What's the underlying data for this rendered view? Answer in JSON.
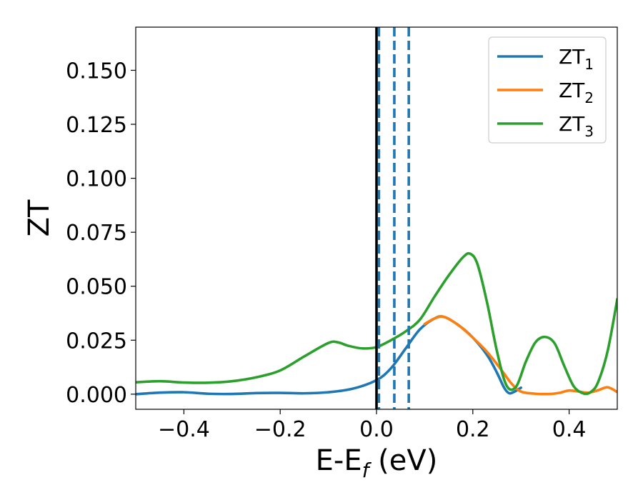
{
  "chart_data": {
    "type": "line",
    "xlabel": "E-E",
    "xlabel_sub": "f",
    "xlabel_unit": " (eV)",
    "ylabel": "ZT",
    "xlim": [
      -0.5,
      0.5
    ],
    "ylim": [
      -0.007,
      0.17
    ],
    "xticks": [
      -0.4,
      -0.2,
      0.0,
      0.2,
      0.4
    ],
    "xtick_labels": [
      "−0.4",
      "−0.2",
      "0.0",
      "0.2",
      "0.4"
    ],
    "yticks": [
      0.0,
      0.025,
      0.05,
      0.075,
      0.1,
      0.125,
      0.15
    ],
    "ytick_labels": [
      "0.000",
      "0.025",
      "0.050",
      "0.075",
      "0.100",
      "0.125",
      "0.150"
    ],
    "grid": false,
    "legend_position": "top-right",
    "vlines": [
      {
        "x": 0.0,
        "color": "#000000",
        "style": "solid"
      },
      {
        "x": 0.005,
        "color": "#1f77b4",
        "style": "dashed"
      },
      {
        "x": 0.037,
        "color": "#1f77b4",
        "style": "dashed"
      },
      {
        "x": 0.067,
        "color": "#1f77b4",
        "style": "dashed"
      }
    ],
    "series": [
      {
        "name": "ZT",
        "name_sub": "1",
        "color": "#1f77b4",
        "x": [
          -0.5,
          -0.45,
          -0.4,
          -0.35,
          -0.3,
          -0.25,
          -0.2,
          -0.15,
          -0.1,
          -0.05,
          0.0,
          0.03,
          0.06,
          0.09,
          0.12,
          0.14,
          0.17,
          0.2,
          0.23,
          0.25,
          0.265,
          0.275,
          0.285,
          0.3
        ],
        "y": [
          0.0,
          0.0007,
          0.0009,
          0.0002,
          0.0001,
          0.0005,
          0.0006,
          0.0004,
          0.0009,
          0.0025,
          0.0065,
          0.012,
          0.021,
          0.03,
          0.035,
          0.0358,
          0.032,
          0.0262,
          0.018,
          0.01,
          0.003,
          0.0005,
          0.001,
          0.003
        ]
      },
      {
        "name": "ZT",
        "name_sub": "2",
        "color": "#ff7f0e",
        "x": [
          0.1,
          0.12,
          0.14,
          0.17,
          0.2,
          0.23,
          0.26,
          0.28,
          0.3,
          0.33,
          0.36,
          0.38,
          0.4,
          0.42,
          0.44,
          0.46,
          0.48,
          0.5
        ],
        "y": [
          0.0325,
          0.035,
          0.0358,
          0.032,
          0.0262,
          0.0195,
          0.011,
          0.005,
          0.0012,
          0.0002,
          0.0001,
          0.0006,
          0.0017,
          0.0012,
          0.0007,
          0.0018,
          0.0032,
          0.001
        ]
      },
      {
        "name": "ZT",
        "name_sub": "3",
        "color": "#2ca02c",
        "x": [
          -0.5,
          -0.45,
          -0.4,
          -0.35,
          -0.3,
          -0.25,
          -0.2,
          -0.15,
          -0.1,
          -0.08,
          -0.06,
          -0.03,
          0.0,
          0.03,
          0.06,
          0.09,
          0.12,
          0.15,
          0.18,
          0.195,
          0.21,
          0.23,
          0.25,
          0.27,
          0.29,
          0.31,
          0.33,
          0.35,
          0.37,
          0.39,
          0.41,
          0.43,
          0.445,
          0.46,
          0.48,
          0.5
        ],
        "y": [
          0.0055,
          0.006,
          0.0054,
          0.0053,
          0.006,
          0.0078,
          0.011,
          0.0175,
          0.0237,
          0.024,
          0.0225,
          0.0212,
          0.0218,
          0.025,
          0.029,
          0.0345,
          0.045,
          0.055,
          0.0635,
          0.065,
          0.06,
          0.042,
          0.02,
          0.004,
          0.0035,
          0.015,
          0.024,
          0.0265,
          0.0235,
          0.013,
          0.0035,
          0.0003,
          0.001,
          0.0055,
          0.02,
          0.044
        ]
      }
    ]
  }
}
